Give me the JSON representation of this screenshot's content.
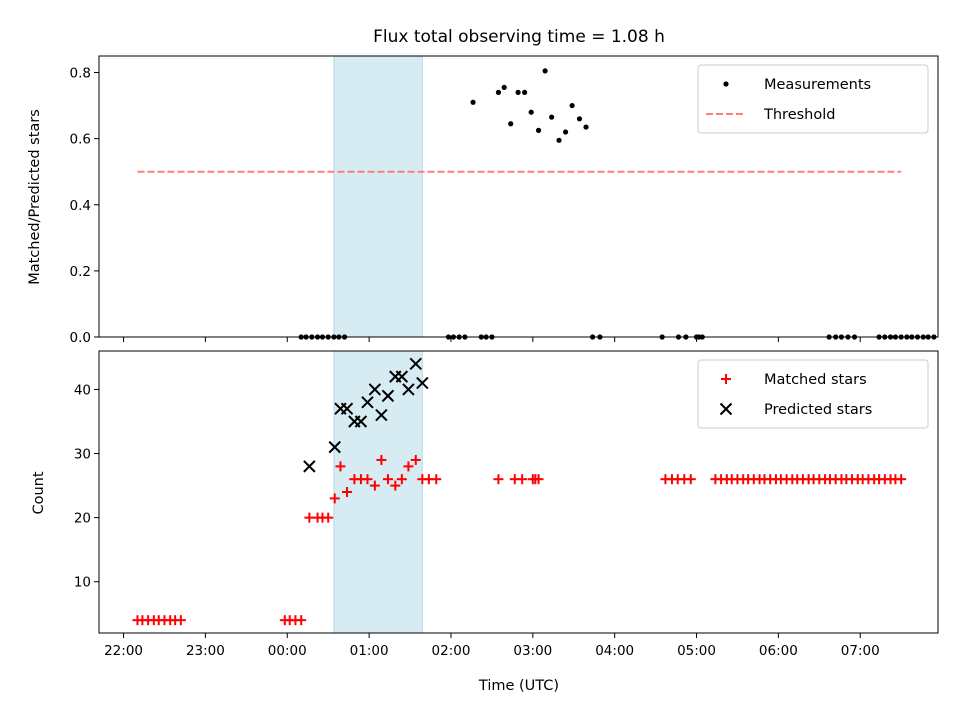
{
  "chart_data": [
    {
      "type": "scatter",
      "title": "Flux total observing time = 1.08 h",
      "xlabel": "",
      "ylabel": "Matched/Predicted stars",
      "ylim": [
        0,
        0.85
      ],
      "yticks": [
        0.0,
        0.2,
        0.4,
        0.6,
        0.8
      ],
      "ytick_labels": [
        "0.0",
        "0.2",
        "0.4",
        "0.6",
        "0.8"
      ],
      "x_unit": "hours since 22:00 UTC",
      "xlim": [
        -0.3,
        9.95
      ],
      "shaded_region": {
        "x0": 2.57,
        "x1": 3.65,
        "color": "#add8e6"
      },
      "legend": {
        "position": "top-right",
        "entries": [
          "Measurements",
          "Threshold"
        ]
      },
      "series": [
        {
          "name": "Measurements",
          "style": "dot",
          "color": "#000000",
          "points": [
            [
              2.17,
              0
            ],
            [
              2.23,
              0
            ],
            [
              2.3,
              0
            ],
            [
              2.37,
              0
            ],
            [
              2.43,
              0
            ],
            [
              2.5,
              0
            ],
            [
              2.57,
              0
            ],
            [
              2.63,
              0
            ],
            [
              2.7,
              0
            ],
            [
              3.97,
              0
            ],
            [
              4.03,
              0
            ],
            [
              4.1,
              0
            ],
            [
              4.17,
              0
            ],
            [
              4.27,
              0.71
            ],
            [
              4.37,
              0
            ],
            [
              4.43,
              0
            ],
            [
              4.5,
              0
            ],
            [
              4.58,
              0.74
            ],
            [
              4.65,
              0.755
            ],
            [
              4.73,
              0.645
            ],
            [
              4.82,
              0.74
            ],
            [
              4.9,
              0.74
            ],
            [
              4.98,
              0.68
            ],
            [
              5.07,
              0.625
            ],
            [
              5.15,
              0.805
            ],
            [
              5.23,
              0.665
            ],
            [
              5.32,
              0.595
            ],
            [
              5.4,
              0.62
            ],
            [
              5.48,
              0.7
            ],
            [
              5.57,
              0.66
            ],
            [
              5.65,
              0.635
            ],
            [
              5.73,
              0
            ],
            [
              5.82,
              0
            ],
            [
              6.58,
              0
            ],
            [
              6.78,
              0
            ],
            [
              6.87,
              0
            ],
            [
              7.0,
              0
            ],
            [
              7.03,
              0
            ],
            [
              7.07,
              0
            ],
            [
              8.62,
              0
            ],
            [
              8.7,
              0
            ],
            [
              8.77,
              0
            ],
            [
              8.85,
              0
            ],
            [
              8.93,
              0
            ],
            [
              9.23,
              0
            ],
            [
              9.3,
              0
            ],
            [
              9.37,
              0
            ],
            [
              9.43,
              0
            ],
            [
              9.5,
              0
            ],
            [
              9.57,
              0
            ],
            [
              9.63,
              0
            ],
            [
              9.7,
              0
            ],
            [
              9.77,
              0
            ],
            [
              9.83,
              0
            ],
            [
              9.9,
              0
            ]
          ]
        },
        {
          "name": "Threshold",
          "style": "dashed-line",
          "color": "#ff7f7f",
          "points": [
            [
              0.17,
              0.5
            ],
            [
              9.5,
              0.5
            ]
          ]
        }
      ]
    },
    {
      "type": "scatter",
      "title": "",
      "xlabel": "Time (UTC)",
      "ylabel": "Count",
      "ylim": [
        2,
        46
      ],
      "yticks": [
        10,
        20,
        30,
        40
      ],
      "ytick_labels": [
        "10",
        "20",
        "30",
        "40"
      ],
      "x_unit": "hours since 22:00 UTC",
      "xlim": [
        -0.3,
        9.95
      ],
      "xticks": [
        0,
        1,
        2,
        3,
        4,
        5,
        6,
        7,
        8,
        9
      ],
      "xtick_labels": [
        "22:00",
        "23:00",
        "00:00",
        "01:00",
        "02:00",
        "03:00",
        "04:00",
        "05:00",
        "06:00",
        "07:00"
      ],
      "shaded_region": {
        "x0": 2.57,
        "x1": 3.65,
        "color": "#add8e6"
      },
      "legend": {
        "position": "top-right",
        "entries": [
          "Matched stars",
          "Predicted stars"
        ]
      },
      "series": [
        {
          "name": "Matched stars",
          "style": "plus",
          "color": "#ff0000",
          "points": [
            [
              0.17,
              4
            ],
            [
              0.23,
              4
            ],
            [
              0.3,
              4
            ],
            [
              0.37,
              4
            ],
            [
              0.43,
              4
            ],
            [
              0.5,
              4
            ],
            [
              0.57,
              4
            ],
            [
              0.63,
              4
            ],
            [
              0.7,
              4
            ],
            [
              1.97,
              4
            ],
            [
              2.03,
              4
            ],
            [
              2.1,
              4
            ],
            [
              2.17,
              4
            ],
            [
              2.27,
              20
            ],
            [
              2.37,
              20
            ],
            [
              2.43,
              20
            ],
            [
              2.5,
              20
            ],
            [
              2.58,
              23
            ],
            [
              2.65,
              28
            ],
            [
              2.73,
              24
            ],
            [
              2.82,
              26
            ],
            [
              2.9,
              26
            ],
            [
              2.98,
              26
            ],
            [
              3.07,
              25
            ],
            [
              3.15,
              29
            ],
            [
              3.23,
              26
            ],
            [
              3.32,
              25
            ],
            [
              3.4,
              26
            ],
            [
              3.48,
              28
            ],
            [
              3.57,
              29
            ],
            [
              3.65,
              26
            ],
            [
              3.73,
              26
            ],
            [
              3.82,
              26
            ],
            [
              4.58,
              26
            ],
            [
              4.78,
              26
            ],
            [
              4.87,
              26
            ],
            [
              5.0,
              26
            ],
            [
              5.03,
              26
            ],
            [
              5.07,
              26
            ],
            [
              6.62,
              26
            ],
            [
              6.7,
              26
            ],
            [
              6.77,
              26
            ],
            [
              6.85,
              26
            ],
            [
              6.93,
              26
            ],
            [
              7.23,
              26
            ],
            [
              7.3,
              26
            ],
            [
              7.37,
              26
            ],
            [
              7.43,
              26
            ],
            [
              7.5,
              26
            ],
            [
              7.57,
              26
            ],
            [
              7.63,
              26
            ],
            [
              7.7,
              26
            ],
            [
              7.77,
              26
            ],
            [
              7.83,
              26
            ],
            [
              7.9,
              26
            ],
            [
              7.97,
              26
            ],
            [
              8.03,
              26
            ],
            [
              8.1,
              26
            ],
            [
              8.17,
              26
            ],
            [
              8.23,
              26
            ],
            [
              8.3,
              26
            ],
            [
              8.37,
              26
            ],
            [
              8.43,
              26
            ],
            [
              8.5,
              26
            ],
            [
              8.57,
              26
            ],
            [
              8.63,
              26
            ],
            [
              8.7,
              26
            ],
            [
              8.77,
              26
            ],
            [
              8.83,
              26
            ],
            [
              8.9,
              26
            ],
            [
              8.97,
              26
            ],
            [
              9.03,
              26
            ],
            [
              9.1,
              26
            ],
            [
              9.17,
              26
            ],
            [
              9.23,
              26
            ],
            [
              9.3,
              26
            ],
            [
              9.37,
              26
            ],
            [
              9.43,
              26
            ],
            [
              9.5,
              26
            ]
          ]
        },
        {
          "name": "Predicted stars",
          "style": "cross",
          "color": "#000000",
          "points": [
            [
              2.27,
              28
            ],
            [
              2.58,
              31
            ],
            [
              2.65,
              37
            ],
            [
              2.73,
              37
            ],
            [
              2.82,
              35
            ],
            [
              2.9,
              35
            ],
            [
              2.98,
              38
            ],
            [
              3.07,
              40
            ],
            [
              3.15,
              36
            ],
            [
              3.23,
              39
            ],
            [
              3.32,
              42
            ],
            [
              3.4,
              42
            ],
            [
              3.48,
              40
            ],
            [
              3.57,
              44
            ],
            [
              3.65,
              41
            ]
          ]
        }
      ]
    }
  ]
}
